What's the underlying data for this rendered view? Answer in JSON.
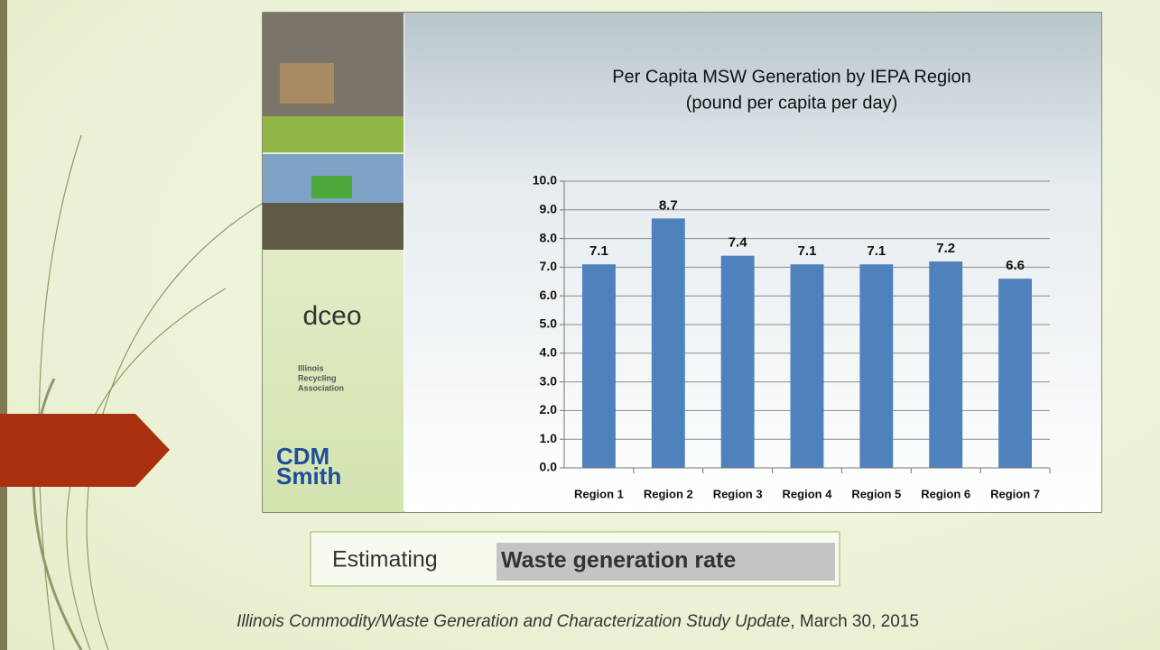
{
  "chart_data": {
    "type": "bar",
    "title": "Per Capita MSW Generation by IEPA Region",
    "subtitle": "(pound per capita per day)",
    "categories": [
      "Region 1",
      "Region 2",
      "Region 3",
      "Region 4",
      "Region 5",
      "Region 6",
      "Region 7"
    ],
    "values": [
      7.1,
      8.7,
      7.4,
      7.1,
      7.1,
      7.2,
      6.6
    ],
    "color": "#4f81bd",
    "ylim": [
      0,
      10
    ],
    "yticks": [
      {
        "value": 0,
        "label": "0.0"
      },
      {
        "value": 1,
        "label": "1.0"
      },
      {
        "value": 2,
        "label": "2.0"
      },
      {
        "value": 3,
        "label": "3.0"
      },
      {
        "value": 4,
        "label": "4.0"
      },
      {
        "value": 5,
        "label": "5.0"
      },
      {
        "value": 6,
        "label": "6.0"
      },
      {
        "value": 7,
        "label": "7.0"
      },
      {
        "value": 8,
        "label": "8.0"
      },
      {
        "value": 9,
        "label": "9.0"
      },
      {
        "value": 10,
        "label": "10.0"
      }
    ],
    "grid": true
  },
  "logos": {
    "dceo": "dceo",
    "ira": [
      "Illinois",
      "Recycling",
      "Association"
    ],
    "cdm": [
      "CDM",
      "Smith"
    ]
  },
  "caption": {
    "prefix": "Estimating",
    "highlight": "Waste generation rate"
  },
  "citation": {
    "title": "Illinois Commodity/Waste Generation and Characterization Study Update",
    "date": ", March 30, 2015"
  }
}
